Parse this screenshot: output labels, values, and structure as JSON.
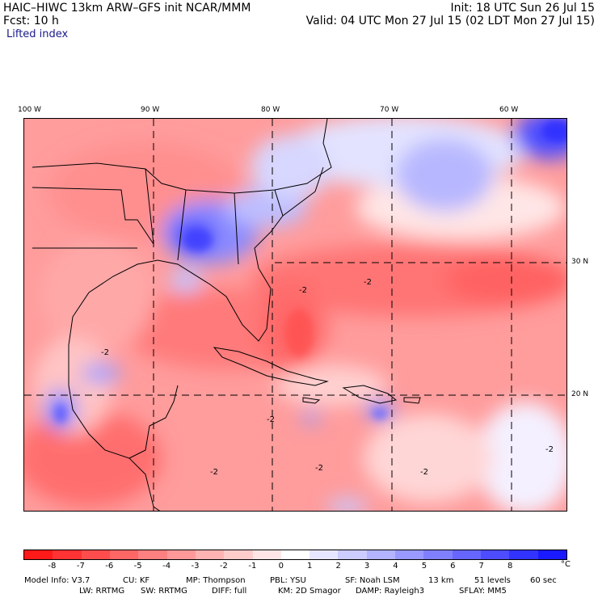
{
  "header": {
    "title": "HAIC–HIWC 13km ARW–GFS init    NCAR/MMM",
    "init": "Init: 18 UTC Sun 26 Jul 15",
    "fcst": "Fcst:     10 h",
    "valid": "Valid: 04 UTC Mon 27 Jul 15 (02 LDT Mon 27 Jul 15)",
    "field": "Lifted index"
  },
  "map": {
    "lon_labels": [
      "100 W",
      "90 W",
      "80 W",
      "70 W",
      "60 W"
    ],
    "lat_labels": [
      "30 N",
      "20 N"
    ],
    "contour_labels": [
      "-2",
      "-2",
      "-2",
      "-2",
      "-2",
      "-2",
      "-2",
      "-2"
    ]
  },
  "colorbar": {
    "colors": [
      "#ff1a1a",
      "#ff3333",
      "#ff4d4d",
      "#ff6666",
      "#ff8080",
      "#ff9999",
      "#ffb3b3",
      "#ffcccc",
      "#ffe6e6",
      "#ffffff",
      "#e6e6ff",
      "#ccccff",
      "#b3b3ff",
      "#9999ff",
      "#8080ff",
      "#6666ff",
      "#4d4dff",
      "#3333ff",
      "#1a1aff"
    ],
    "ticks": [
      "-8",
      "-7",
      "-6",
      "-5",
      "-4",
      "-3",
      "-2",
      "-1",
      "0",
      "1",
      "2",
      "3",
      "4",
      "5",
      "6",
      "7",
      "8"
    ],
    "unit": "°C"
  },
  "footer": {
    "row1": [
      "Model Info: V3.7",
      "CU: KF",
      "MP: Thompson",
      "PBL: YSU",
      "SF: Noah LSM",
      "13 km",
      "51 levels",
      "60 sec"
    ],
    "row2": [
      "LW: RRTMG",
      "SW: RRTMG",
      "DIFF: full",
      "KM: 2D Smagor",
      "DAMP: Rayleigh3",
      "SFLAY: MM5"
    ]
  }
}
